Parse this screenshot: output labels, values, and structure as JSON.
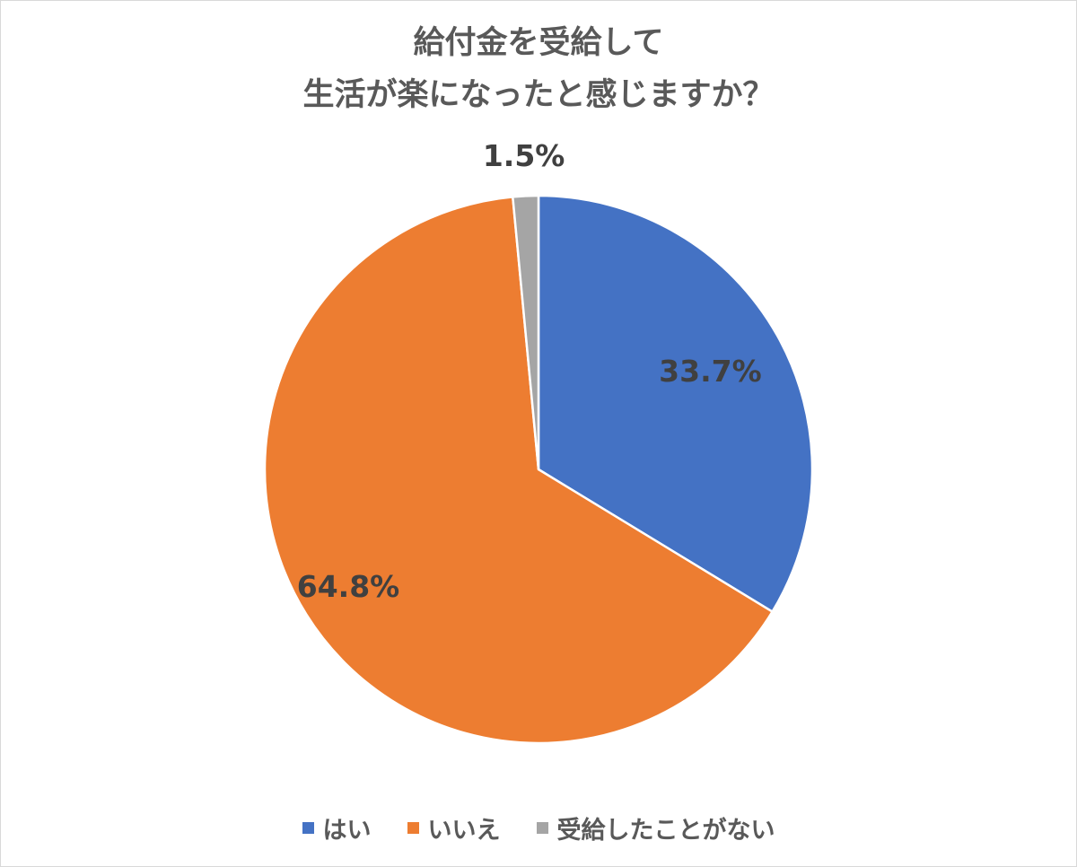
{
  "chart_data": {
    "type": "pie",
    "title_lines": [
      "給付金を受給して",
      "生活が楽になったと感じますか？"
    ],
    "categories": [
      "はい",
      "いいえ",
      "受給したことがない"
    ],
    "values": [
      33.7,
      64.8,
      1.5
    ],
    "labels": [
      "33.7%",
      "64.8%",
      "1.5%"
    ],
    "colors": [
      "#4472c4",
      "#ed7d31",
      "#a5a5a5"
    ],
    "legend_position": "bottom"
  }
}
